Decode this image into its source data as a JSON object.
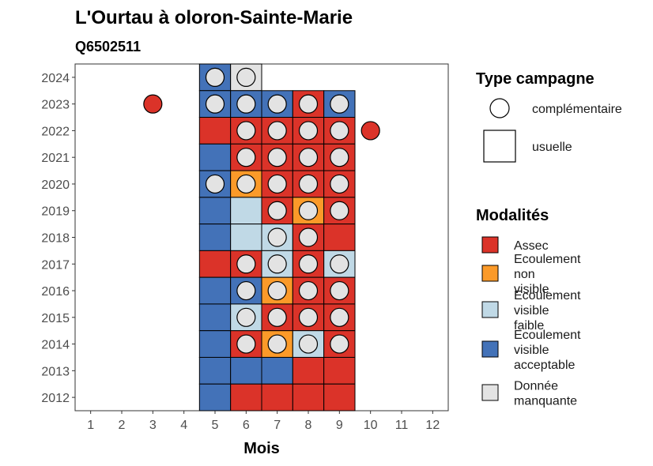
{
  "chart_data": {
    "type": "heatmap",
    "title": "L'Ourtau à oloron-Sainte-Marie",
    "subtitle": "Q6502511",
    "xlabel": "Mois",
    "ylabel": "",
    "x_ticks": [
      1,
      2,
      3,
      4,
      5,
      6,
      7,
      8,
      9,
      10,
      11,
      12
    ],
    "y_ticks": [
      2012,
      2013,
      2014,
      2015,
      2016,
      2017,
      2018,
      2019,
      2020,
      2021,
      2022,
      2023,
      2024
    ],
    "xlim": [
      0.5,
      12.5
    ],
    "ylim": [
      2011.5,
      2024.5
    ],
    "modalities": [
      {
        "key": "A",
        "label": "Assec",
        "color": "#db3329"
      },
      {
        "key": "N",
        "label": "Ecoulement non visible",
        "color": "#fb9a29"
      },
      {
        "key": "F",
        "label": "Ecoulement visible faible",
        "color": "#c0d9e6"
      },
      {
        "key": "V",
        "label": "Ecoulement visible acceptable",
        "color": "#4372b8"
      },
      {
        "key": "M",
        "label": "Donnée manquante",
        "color": "#e3e3e3"
      }
    ],
    "campaign_types": [
      {
        "key": "circle",
        "label": "complémentaire"
      },
      {
        "key": "square",
        "label": "usuelle"
      }
    ],
    "usual_cells": [
      {
        "year": 2024,
        "month": 5,
        "mod": "V"
      },
      {
        "year": 2024,
        "month": 6,
        "mod": "M"
      },
      {
        "year": 2023,
        "month": 5,
        "mod": "V"
      },
      {
        "year": 2023,
        "month": 6,
        "mod": "V"
      },
      {
        "year": 2023,
        "month": 7,
        "mod": "V"
      },
      {
        "year": 2023,
        "month": 8,
        "mod": "A"
      },
      {
        "year": 2023,
        "month": 9,
        "mod": "V"
      },
      {
        "year": 2022,
        "month": 5,
        "mod": "A"
      },
      {
        "year": 2022,
        "month": 6,
        "mod": "A"
      },
      {
        "year": 2022,
        "month": 7,
        "mod": "A"
      },
      {
        "year": 2022,
        "month": 8,
        "mod": "A"
      },
      {
        "year": 2022,
        "month": 9,
        "mod": "A"
      },
      {
        "year": 2021,
        "month": 5,
        "mod": "V"
      },
      {
        "year": 2021,
        "month": 6,
        "mod": "A"
      },
      {
        "year": 2021,
        "month": 7,
        "mod": "A"
      },
      {
        "year": 2021,
        "month": 8,
        "mod": "A"
      },
      {
        "year": 2021,
        "month": 9,
        "mod": "A"
      },
      {
        "year": 2020,
        "month": 5,
        "mod": "V"
      },
      {
        "year": 2020,
        "month": 6,
        "mod": "N"
      },
      {
        "year": 2020,
        "month": 7,
        "mod": "A"
      },
      {
        "year": 2020,
        "month": 8,
        "mod": "A"
      },
      {
        "year": 2020,
        "month": 9,
        "mod": "A"
      },
      {
        "year": 2019,
        "month": 5,
        "mod": "V"
      },
      {
        "year": 2019,
        "month": 6,
        "mod": "F"
      },
      {
        "year": 2019,
        "month": 7,
        "mod": "A"
      },
      {
        "year": 2019,
        "month": 8,
        "mod": "N"
      },
      {
        "year": 2019,
        "month": 9,
        "mod": "A"
      },
      {
        "year": 2018,
        "month": 5,
        "mod": "V"
      },
      {
        "year": 2018,
        "month": 6,
        "mod": "F"
      },
      {
        "year": 2018,
        "month": 7,
        "mod": "F"
      },
      {
        "year": 2018,
        "month": 8,
        "mod": "A"
      },
      {
        "year": 2018,
        "month": 9,
        "mod": "A"
      },
      {
        "year": 2017,
        "month": 5,
        "mod": "A"
      },
      {
        "year": 2017,
        "month": 6,
        "mod": "A"
      },
      {
        "year": 2017,
        "month": 7,
        "mod": "F"
      },
      {
        "year": 2017,
        "month": 8,
        "mod": "A"
      },
      {
        "year": 2017,
        "month": 9,
        "mod": "F"
      },
      {
        "year": 2016,
        "month": 5,
        "mod": "V"
      },
      {
        "year": 2016,
        "month": 6,
        "mod": "V"
      },
      {
        "year": 2016,
        "month": 7,
        "mod": "N"
      },
      {
        "year": 2016,
        "month": 8,
        "mod": "A"
      },
      {
        "year": 2016,
        "month": 9,
        "mod": "A"
      },
      {
        "year": 2015,
        "month": 5,
        "mod": "V"
      },
      {
        "year": 2015,
        "month": 6,
        "mod": "F"
      },
      {
        "year": 2015,
        "month": 7,
        "mod": "A"
      },
      {
        "year": 2015,
        "month": 8,
        "mod": "A"
      },
      {
        "year": 2015,
        "month": 9,
        "mod": "A"
      },
      {
        "year": 2014,
        "month": 5,
        "mod": "V"
      },
      {
        "year": 2014,
        "month": 6,
        "mod": "A"
      },
      {
        "year": 2014,
        "month": 7,
        "mod": "N"
      },
      {
        "year": 2014,
        "month": 8,
        "mod": "F"
      },
      {
        "year": 2014,
        "month": 9,
        "mod": "A"
      },
      {
        "year": 2013,
        "month": 5,
        "mod": "V"
      },
      {
        "year": 2013,
        "month": 6,
        "mod": "V"
      },
      {
        "year": 2013,
        "month": 7,
        "mod": "V"
      },
      {
        "year": 2013,
        "month": 8,
        "mod": "A"
      },
      {
        "year": 2013,
        "month": 9,
        "mod": "A"
      },
      {
        "year": 2012,
        "month": 5,
        "mod": "V"
      },
      {
        "year": 2012,
        "month": 6,
        "mod": "A"
      },
      {
        "year": 2012,
        "month": 7,
        "mod": "A"
      },
      {
        "year": 2012,
        "month": 8,
        "mod": "A"
      },
      {
        "year": 2012,
        "month": 9,
        "mod": "A"
      }
    ],
    "complementary_points": [
      {
        "year": 2024,
        "month": 5,
        "mod": "M"
      },
      {
        "year": 2024,
        "month": 6,
        "mod": "M"
      },
      {
        "year": 2023,
        "month": 3,
        "mod": "A"
      },
      {
        "year": 2023,
        "month": 5,
        "mod": "M"
      },
      {
        "year": 2023,
        "month": 6,
        "mod": "M"
      },
      {
        "year": 2023,
        "month": 7,
        "mod": "M"
      },
      {
        "year": 2023,
        "month": 8,
        "mod": "M"
      },
      {
        "year": 2023,
        "month": 9,
        "mod": "M"
      },
      {
        "year": 2022,
        "month": 6,
        "mod": "M"
      },
      {
        "year": 2022,
        "month": 7,
        "mod": "M"
      },
      {
        "year": 2022,
        "month": 8,
        "mod": "M"
      },
      {
        "year": 2022,
        "month": 9,
        "mod": "M"
      },
      {
        "year": 2022,
        "month": 10,
        "mod": "A"
      },
      {
        "year": 2021,
        "month": 6,
        "mod": "M"
      },
      {
        "year": 2021,
        "month": 7,
        "mod": "M"
      },
      {
        "year": 2021,
        "month": 8,
        "mod": "M"
      },
      {
        "year": 2021,
        "month": 9,
        "mod": "M"
      },
      {
        "year": 2020,
        "month": 5,
        "mod": "M"
      },
      {
        "year": 2020,
        "month": 6,
        "mod": "M"
      },
      {
        "year": 2020,
        "month": 7,
        "mod": "M"
      },
      {
        "year": 2020,
        "month": 8,
        "mod": "M"
      },
      {
        "year": 2020,
        "month": 9,
        "mod": "M"
      },
      {
        "year": 2019,
        "month": 7,
        "mod": "M"
      },
      {
        "year": 2019,
        "month": 8,
        "mod": "M"
      },
      {
        "year": 2019,
        "month": 9,
        "mod": "M"
      },
      {
        "year": 2018,
        "month": 7,
        "mod": "M"
      },
      {
        "year": 2018,
        "month": 8,
        "mod": "M"
      },
      {
        "year": 2017,
        "month": 6,
        "mod": "M"
      },
      {
        "year": 2017,
        "month": 7,
        "mod": "M"
      },
      {
        "year": 2017,
        "month": 8,
        "mod": "M"
      },
      {
        "year": 2017,
        "month": 9,
        "mod": "M"
      },
      {
        "year": 2016,
        "month": 6,
        "mod": "M"
      },
      {
        "year": 2016,
        "month": 7,
        "mod": "M"
      },
      {
        "year": 2016,
        "month": 8,
        "mod": "M"
      },
      {
        "year": 2016,
        "month": 9,
        "mod": "M"
      },
      {
        "year": 2015,
        "month": 6,
        "mod": "M"
      },
      {
        "year": 2015,
        "month": 7,
        "mod": "M"
      },
      {
        "year": 2015,
        "month": 8,
        "mod": "M"
      },
      {
        "year": 2015,
        "month": 9,
        "mod": "M"
      },
      {
        "year": 2014,
        "month": 6,
        "mod": "M"
      },
      {
        "year": 2014,
        "month": 7,
        "mod": "M"
      },
      {
        "year": 2014,
        "month": 8,
        "mod": "M"
      },
      {
        "year": 2014,
        "month": 9,
        "mod": "M"
      }
    ],
    "legend": {
      "campaign_title": "Type campagne",
      "modality_title": "Modalités",
      "placement": "right"
    }
  }
}
